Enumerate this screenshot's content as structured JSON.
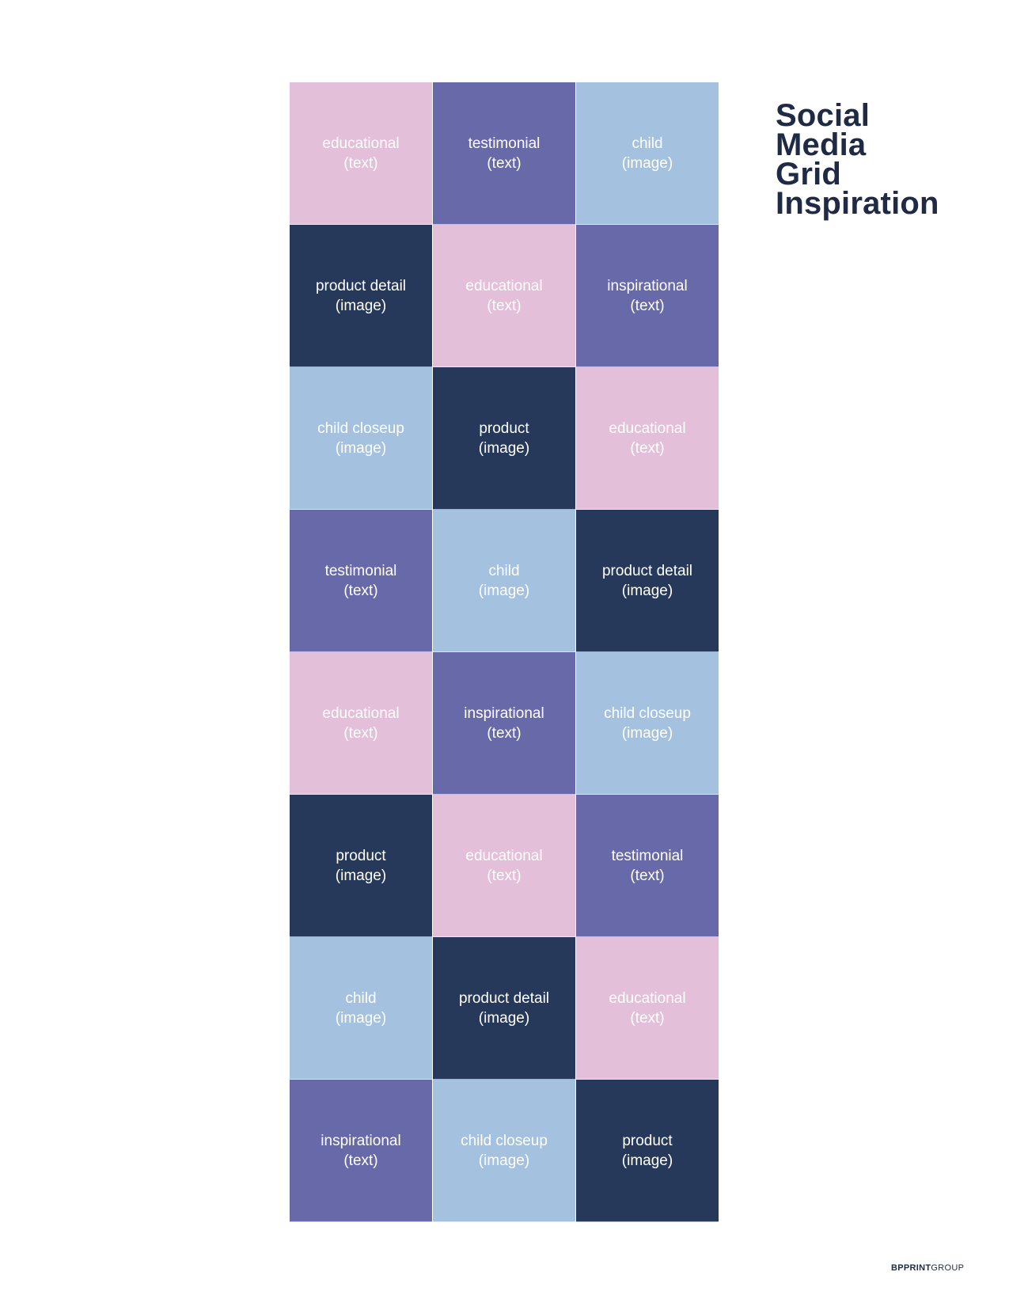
{
  "title_lines": [
    "Social",
    "Media",
    "Grid",
    "Inspiration"
  ],
  "brand": {
    "part1": "BPPRINT",
    "part2": "GROUP"
  },
  "colors": {
    "pink": "#e3bfd9",
    "purple": "#6869a8",
    "blue": "#a4c2df",
    "navy": "#27395a",
    "title": "#1f2a44"
  },
  "grid": [
    [
      {
        "label": "educational",
        "sub": "(text)",
        "color": "pink"
      },
      {
        "label": "testimonial",
        "sub": "(text)",
        "color": "purple"
      },
      {
        "label": "child",
        "sub": "(image)",
        "color": "blue"
      }
    ],
    [
      {
        "label": "product detail",
        "sub": "(image)",
        "color": "navy"
      },
      {
        "label": "educational",
        "sub": "(text)",
        "color": "pink"
      },
      {
        "label": "inspirational",
        "sub": "(text)",
        "color": "purple"
      }
    ],
    [
      {
        "label": "child closeup",
        "sub": "(image)",
        "color": "blue"
      },
      {
        "label": "product",
        "sub": "(image)",
        "color": "navy"
      },
      {
        "label": "educational",
        "sub": "(text)",
        "color": "pink"
      }
    ],
    [
      {
        "label": "testimonial",
        "sub": "(text)",
        "color": "purple"
      },
      {
        "label": "child",
        "sub": "(image)",
        "color": "blue"
      },
      {
        "label": "product detail",
        "sub": "(image)",
        "color": "navy"
      }
    ],
    [
      {
        "label": "educational",
        "sub": "(text)",
        "color": "pink"
      },
      {
        "label": "inspirational",
        "sub": "(text)",
        "color": "purple"
      },
      {
        "label": "child closeup",
        "sub": "(image)",
        "color": "blue"
      }
    ],
    [
      {
        "label": "product",
        "sub": "(image)",
        "color": "navy"
      },
      {
        "label": "educational",
        "sub": "(text)",
        "color": "pink"
      },
      {
        "label": "testimonial",
        "sub": "(text)",
        "color": "purple"
      }
    ],
    [
      {
        "label": "child",
        "sub": "(image)",
        "color": "blue"
      },
      {
        "label": "product detail",
        "sub": "(image)",
        "color": "navy"
      },
      {
        "label": "educational",
        "sub": "(text)",
        "color": "pink"
      }
    ],
    [
      {
        "label": "inspirational",
        "sub": "(text)",
        "color": "purple"
      },
      {
        "label": "child closeup",
        "sub": "(image)",
        "color": "blue"
      },
      {
        "label": "product",
        "sub": "(image)",
        "color": "navy"
      }
    ]
  ]
}
